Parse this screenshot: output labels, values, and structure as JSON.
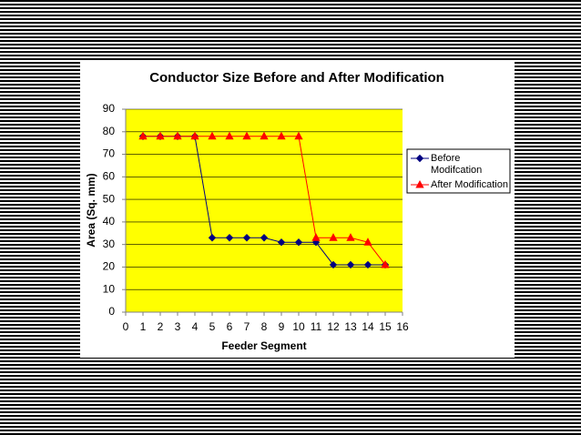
{
  "chart_data": {
    "type": "line",
    "title": "Conductor Size Before and After Modification",
    "x_label": "Feeder Segment",
    "y_label": "Area (Sq. mm)",
    "x": [
      1,
      2,
      3,
      4,
      5,
      6,
      7,
      8,
      9,
      10,
      11,
      12,
      13,
      14,
      15
    ],
    "series": [
      {
        "name": "Before Modifcation",
        "color": "#000080",
        "marker": "diamond",
        "values": [
          78,
          78,
          78,
          78,
          33,
          33,
          33,
          33,
          31,
          31,
          31,
          21,
          21,
          21,
          21
        ]
      },
      {
        "name": "After Modification",
        "color": "#ff0000",
        "marker": "triangle",
        "values": [
          78,
          78,
          78,
          78,
          78,
          78,
          78,
          78,
          78,
          78,
          33,
          33,
          33,
          31,
          21
        ]
      }
    ],
    "xlim": [
      0,
      16
    ],
    "xticks": [
      0,
      1,
      2,
      3,
      4,
      5,
      6,
      7,
      8,
      9,
      10,
      11,
      12,
      13,
      14,
      15,
      16
    ],
    "ylim": [
      0,
      90
    ],
    "yticks": [
      0,
      10,
      20,
      30,
      40,
      50,
      60,
      70,
      80,
      90
    ],
    "grid": true,
    "plot_background": "#ffff00",
    "legend": "right"
  }
}
